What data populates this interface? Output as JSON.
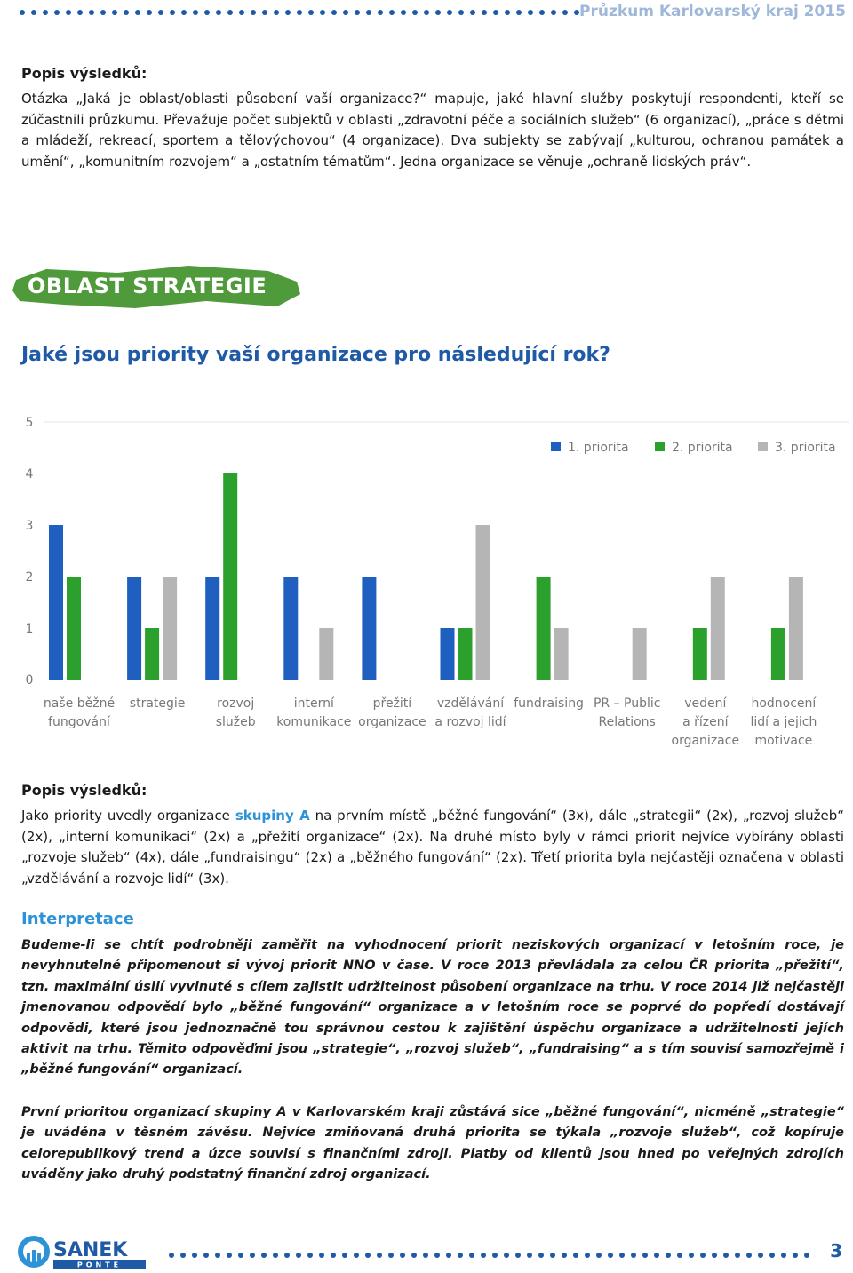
{
  "header": {
    "title": "Průzkum Karlovarský kraj 2015"
  },
  "section1": {
    "heading": "Popis výsledků:",
    "text": "Otázka „Jaká je oblast/oblasti působení vaší organizace?“ mapuje, jaké hlavní služby poskytují respondenti, kteří se zúčastnili průzkumu. Převažuje počet subjektů v oblasti „zdravotní péče a sociálních služeb“ (6 organizací), „práce s dětmi a mládeží, rekreací, sportem a tělovýchovou“ (4 organizace). Dva subjekty se zabývají „kulturou, ochranou památek a umění“, „komunitním rozvojem“ a „ostatním tématům“. Jedna organizace se věnuje „ochraně lidských práv“."
  },
  "banner": {
    "label": "OBLAST STRATEGIE"
  },
  "question": "Jaké jsou priority vaší organizace pro následující rok?",
  "chart_data": {
    "type": "bar",
    "title": "Jaké jsou priority vaší organizace pro následující rok?",
    "categories": [
      [
        "naše běžné",
        "fungování"
      ],
      [
        "strategie"
      ],
      [
        "rozvoj",
        "služeb"
      ],
      [
        "interní",
        "komunikace"
      ],
      [
        "přežití",
        "organizace"
      ],
      [
        "vzdělávání",
        "a rozvoj lidí"
      ],
      [
        "fundraising"
      ],
      [
        "PR – Public",
        "Relations"
      ],
      [
        "vedení",
        "a řízení",
        "organizace"
      ],
      [
        "hodnocení",
        "lidí a jejich",
        "motivace"
      ]
    ],
    "series": [
      {
        "name": "1. priorita",
        "color": "#1f5fbf",
        "values": [
          3,
          2,
          2,
          2,
          2,
          1,
          0,
          0,
          0,
          0
        ]
      },
      {
        "name": "2. priorita",
        "color": "#2ca02c",
        "values": [
          2,
          1,
          4,
          0,
          0,
          1,
          2,
          0,
          1,
          1
        ]
      },
      {
        "name": "3. priorita",
        "color": "#b5b5b5",
        "values": [
          0,
          2,
          0,
          1,
          0,
          3,
          1,
          1,
          2,
          2
        ]
      }
    ],
    "yticks": [
      "0",
      "1",
      "2",
      "3",
      "4",
      "5"
    ],
    "ylim": [
      0,
      5
    ],
    "legend": "top-right",
    "grid": false
  },
  "section2": {
    "heading": "Popis výsledků:",
    "text_before": "Jako priority uvedly organizace ",
    "highlight": "skupiny A",
    "text_after": " na prvním místě „běžné fungování“ (3x), dále „strategii“ (2x), „rozvoj služeb“ (2x), „interní komunikaci“ (2x) a „přežití organizace“ (2x). Na druhé místo byly v rámci priorit nejvíce vybírány oblasti „rozvoje služeb“ (4x), dále „fundraisingu“ (2x) a „běžného fungování“ (2x). Třetí priorita byla nejčastěji označena v oblasti „vzdělávání a rozvoje lidí“ (3x)."
  },
  "interpretation": {
    "heading": "Interpretace",
    "paragraph1": "Budeme-li se chtít podrobněji zaměřit na vyhodnocení priorit neziskových organizací v letošním roce, je nevyhnutelné připomenout si vývoj priorit NNO v čase. V roce 2013 převládala za celou ČR priorita „přežití“, tzn. maximální úsilí vyvinuté s cílem zajistit udržitelnost působení organizace na trhu. V roce 2014 již nejčastěji jmenovanou odpovědí bylo „běžné fungování“ organizace a v letošním roce se poprvé do popředí dostávají odpovědi, které jsou jednoznačně tou správnou cestou k zajištění úspěchu organizace a udržitelnosti jejích aktivit na trhu. Těmito odpověďmi jsou „strategie“, „rozvoj služeb“, „fundraising“ a s tím souvisí samozřejmě i „běžné fungování“ organizací.",
    "paragraph2": "První prioritou organizací skupiny A v Karlovarském kraji zůstává sice „běžné fungování“, nicméně „strategie“ je uváděna v těsném závěsu. Nejvíce zmiňovaná druhá priorita se týkala „rozvoje služeb“, což kopíruje celorepublikový trend a úzce souvisí s finančními zdroji. Platby od klientů jsou hned po veřejných zdrojích uváděny jako druhý podstatný finanční zdroj organizací."
  },
  "footer": {
    "logo_text": "SANEK",
    "logo_sub": "PONTE",
    "page_number": "3"
  },
  "colors": {
    "accent_blue": "#1f5aa6",
    "light_blue": "#2d93d6",
    "banner_green": "#4f9a3a"
  }
}
